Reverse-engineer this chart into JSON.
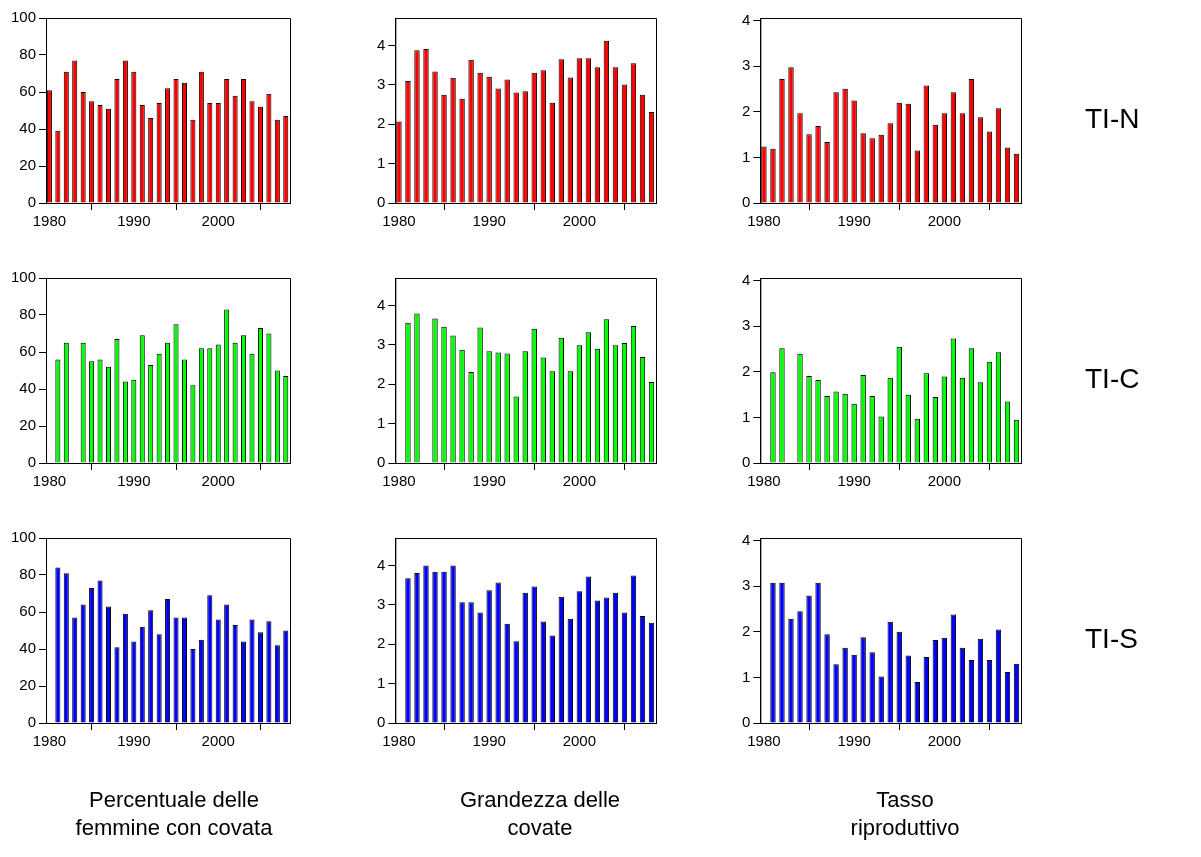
{
  "chart_data": [
    {
      "type": "bar",
      "x": [
        1980,
        1981,
        1982,
        1983,
        1984,
        1985,
        1986,
        1987,
        1988,
        1989,
        1990,
        1991,
        1992,
        1993,
        1994,
        1995,
        1996,
        1997,
        1998,
        1999,
        2000,
        2001,
        2002,
        2003,
        2004,
        2005,
        2006,
        2007,
        2008
      ],
      "values": [
        61,
        39,
        71,
        77,
        60,
        55,
        53,
        51,
        67,
        77,
        71,
        53,
        46,
        54,
        62,
        67,
        65,
        45,
        71,
        54,
        54,
        67,
        58,
        67,
        55,
        52,
        59,
        45,
        47
      ],
      "color": "#ff0000",
      "xlim": [
        1979.6,
        2008.5
      ],
      "xticks": [
        1980,
        1990,
        2000
      ],
      "ylim": [
        0,
        100
      ],
      "yticks": [
        0,
        20,
        40,
        60,
        80,
        100
      ],
      "grid": false
    },
    {
      "type": "bar",
      "x": [
        1980,
        1981,
        1982,
        1983,
        1984,
        1985,
        1986,
        1987,
        1988,
        1989,
        1990,
        1991,
        1992,
        1993,
        1994,
        1995,
        1996,
        1997,
        1998,
        1999,
        2000,
        2001,
        2002,
        2003,
        2004,
        2005,
        2006,
        2007,
        2008
      ],
      "values": [
        2.07,
        3.1,
        3.88,
        3.91,
        3.34,
        2.75,
        3.18,
        2.65,
        3.64,
        3.31,
        3.21,
        2.91,
        3.14,
        2.81,
        2.84,
        3.31,
        3.37,
        2.55,
        3.65,
        3.19,
        3.68,
        3.68,
        3.45,
        4.12,
        3.45,
        3.01,
        3.55,
        2.75,
        2.31
      ],
      "color": "#ff0000",
      "xlim": [
        1979.6,
        2008.5
      ],
      "xticks": [
        1980,
        1990,
        2000
      ],
      "ylim": [
        0,
        4.7
      ],
      "yticks": [
        0,
        1,
        2,
        3,
        4
      ],
      "grid": false
    },
    {
      "type": "bar",
      "x": [
        1980,
        1981,
        1982,
        1983,
        1984,
        1985,
        1986,
        1987,
        1988,
        1989,
        1990,
        1991,
        1992,
        1993,
        1994,
        1995,
        1996,
        1997,
        1998,
        1999,
        2000,
        2001,
        2002,
        2003,
        2004,
        2005,
        2006,
        2007,
        2008
      ],
      "values": [
        1.24,
        1.19,
        2.72,
        2.98,
        1.97,
        1.51,
        1.69,
        1.34,
        2.43,
        2.51,
        2.25,
        1.53,
        1.42,
        1.5,
        1.75,
        2.2,
        2.18,
        1.15,
        2.58,
        1.72,
        1.97,
        2.43,
        1.97,
        2.72,
        1.88,
        1.57,
        2.08,
        1.22,
        1.08
      ],
      "color": "#ff0000",
      "xlim": [
        1979.6,
        2008.5
      ],
      "xticks": [
        1980,
        1990,
        2000
      ],
      "ylim": [
        0,
        4.06
      ],
      "yticks": [
        0,
        1,
        2,
        3,
        4
      ],
      "grid": false,
      "annotations": [
        "TI-N"
      ]
    },
    {
      "type": "bar",
      "x": [
        1981,
        1982,
        1983,
        1984,
        1985,
        1986,
        1987,
        1988,
        1989,
        1990,
        1991,
        1992,
        1993,
        1994,
        1995,
        1996,
        1997,
        1998,
        1999,
        2000,
        2001,
        2002,
        2003,
        2004,
        2005,
        2006,
        2007,
        2008
      ],
      "values": [
        56,
        65,
        null,
        65,
        55,
        56,
        52,
        67,
        44,
        45,
        69,
        53,
        59,
        65,
        75,
        56,
        42,
        62,
        62,
        64,
        83,
        65,
        69,
        59,
        73,
        70,
        50,
        47
      ],
      "color": "#00ff00",
      "xlim": [
        1979.6,
        2008.5
      ],
      "xticks": [
        1980,
        1990,
        2000
      ],
      "ylim": [
        0,
        100
      ],
      "yticks": [
        0,
        20,
        40,
        60,
        80,
        100
      ],
      "grid": false
    },
    {
      "type": "bar",
      "x": [
        1981,
        1982,
        1983,
        1984,
        1985,
        1986,
        1987,
        1988,
        1989,
        1990,
        1991,
        1992,
        1993,
        1994,
        1995,
        1996,
        1997,
        1998,
        1999,
        2000,
        2001,
        2002,
        2003,
        2004,
        2005,
        2006,
        2007,
        2008
      ],
      "values": [
        3.56,
        3.8,
        null,
        3.67,
        3.46,
        3.24,
        2.88,
        2.31,
        3.44,
        2.84,
        2.81,
        2.78,
        1.69,
        2.84,
        3.41,
        2.68,
        2.33,
        3.18,
        2.33,
        2.99,
        3.32,
        2.9,
        3.65,
        2.99,
        3.05,
        3.48,
        2.69,
        2.06
      ],
      "color": "#00ff00",
      "xlim": [
        1979.6,
        2008.5
      ],
      "xticks": [
        1980,
        1990,
        2000
      ],
      "ylim": [
        0,
        4.7
      ],
      "yticks": [
        0,
        1,
        2,
        3,
        4
      ],
      "grid": false
    },
    {
      "type": "bar",
      "x": [
        1981,
        1982,
        1983,
        1984,
        1985,
        1986,
        1987,
        1988,
        1989,
        1990,
        1991,
        1992,
        1993,
        1994,
        1995,
        1996,
        1997,
        1998,
        1999,
        2000,
        2001,
        2002,
        2003,
        2004,
        2005,
        2006,
        2007,
        2008
      ],
      "values": [
        1.99,
        2.52,
        null,
        2.4,
        1.91,
        1.82,
        1.47,
        1.57,
        1.52,
        1.3,
        1.93,
        1.47,
        1.02,
        1.87,
        2.55,
        1.5,
        0.97,
        1.97,
        1.45,
        1.9,
        2.73,
        1.87,
        2.52,
        1.77,
        2.22,
        2.43,
        1.35,
        0.95
      ],
      "color": "#00ff00",
      "xlim": [
        1979.6,
        2008.5
      ],
      "xticks": [
        1980,
        1990,
        2000
      ],
      "ylim": [
        0,
        4.06
      ],
      "yticks": [
        0,
        1,
        2,
        3,
        4
      ],
      "grid": false,
      "annotations": [
        "TI-C"
      ]
    },
    {
      "type": "bar",
      "x": [
        1981,
        1982,
        1983,
        1984,
        1985,
        1986,
        1987,
        1988,
        1989,
        1990,
        1991,
        1992,
        1993,
        1994,
        1995,
        1996,
        1997,
        1998,
        1999,
        2000,
        2001,
        2002,
        2003,
        2004,
        2005,
        2006,
        2007,
        2008
      ],
      "values": [
        84,
        81,
        57,
        64,
        73,
        77,
        63,
        41,
        59,
        44,
        52,
        61,
        48,
        67,
        57,
        57,
        40,
        45,
        69,
        56,
        64,
        53,
        44,
        56,
        49,
        55,
        42,
        50
      ],
      "color": "#0000ff",
      "xlim": [
        1979.6,
        2008.5
      ],
      "xticks": [
        1980,
        1990,
        2000
      ],
      "ylim": [
        0,
        100
      ],
      "yticks": [
        0,
        20,
        40,
        60,
        80,
        100
      ],
      "grid": false,
      "xlabel": "Percentuale delle femmine con covata"
    },
    {
      "type": "bar",
      "x": [
        1981,
        1982,
        1983,
        1984,
        1985,
        1986,
        1987,
        1988,
        1989,
        1990,
        1991,
        1992,
        1993,
        1994,
        1995,
        1996,
        1997,
        1998,
        1999,
        2000,
        2001,
        2002,
        2003,
        2004,
        2005,
        2006,
        2007,
        2008
      ],
      "values": [
        3.68,
        3.81,
        4.0,
        3.84,
        3.84,
        4.0,
        3.07,
        3.07,
        2.81,
        3.37,
        3.57,
        2.52,
        2.08,
        3.31,
        3.47,
        2.58,
        2.22,
        3.21,
        2.65,
        3.35,
        3.72,
        3.11,
        3.19,
        3.31,
        2.81,
        3.75,
        2.72,
        2.55
      ],
      "color": "#0000ff",
      "xlim": [
        1979.6,
        2008.5
      ],
      "xticks": [
        1980,
        1990,
        2000
      ],
      "ylim": [
        0,
        4.7
      ],
      "yticks": [
        0,
        1,
        2,
        3,
        4
      ],
      "grid": false,
      "xlabel": "Grandezza delle covate"
    },
    {
      "type": "bar",
      "x": [
        1981,
        1982,
        1983,
        1984,
        1985,
        1986,
        1987,
        1988,
        1989,
        1990,
        1991,
        1992,
        1993,
        1994,
        1995,
        1996,
        1997,
        1998,
        1999,
        2000,
        2001,
        2002,
        2003,
        2004,
        2005,
        2006,
        2007,
        2008
      ],
      "values": [
        3.08,
        3.08,
        2.29,
        2.45,
        2.8,
        3.08,
        1.95,
        1.29,
        1.65,
        1.5,
        1.88,
        1.55,
        1.02,
        2.22,
        2.0,
        1.48,
        0.9,
        1.45,
        1.82,
        1.87,
        2.38,
        1.65,
        1.38,
        1.85,
        1.38,
        2.05,
        1.12,
        1.3
      ],
      "color": "#0000ff",
      "xlim": [
        1979.6,
        2008.5
      ],
      "xticks": [
        1980,
        1990,
        2000
      ],
      "ylim": [
        0,
        4.06
      ],
      "yticks": [
        0,
        1,
        2,
        3,
        4
      ],
      "grid": false,
      "xlabel": "Tasso riproduttivo",
      "annotations": [
        "TI-S"
      ]
    }
  ]
}
